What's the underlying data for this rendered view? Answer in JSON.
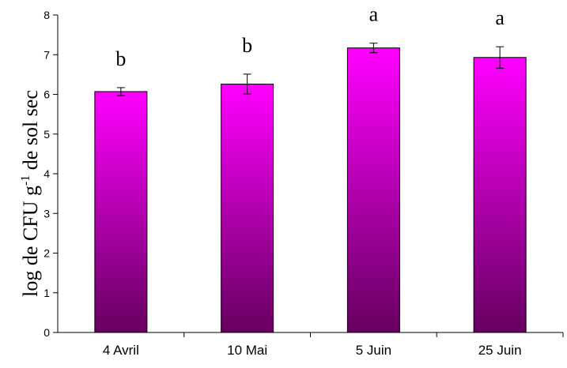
{
  "chart_data": {
    "type": "bar",
    "categories": [
      "4 Avril",
      "10 Mai",
      "5 Juin",
      "25 Juin"
    ],
    "values": [
      6.07,
      6.26,
      7.17,
      6.93
    ],
    "errors": [
      0.1,
      0.25,
      0.12,
      0.27
    ],
    "letters": [
      "b",
      "b",
      "a",
      "a"
    ],
    "ylabel_main": "log de CFU g",
    "ylabel_sup": "-1",
    "ylabel_tail": " de sol sec",
    "ylim": [
      0,
      8
    ],
    "yticks": [
      "0",
      "1",
      "2",
      "3",
      "4",
      "5",
      "6",
      "7",
      "8"
    ],
    "grid": false,
    "bar_color_top": "#ff00ff",
    "bar_color_bottom": "#66005f"
  }
}
